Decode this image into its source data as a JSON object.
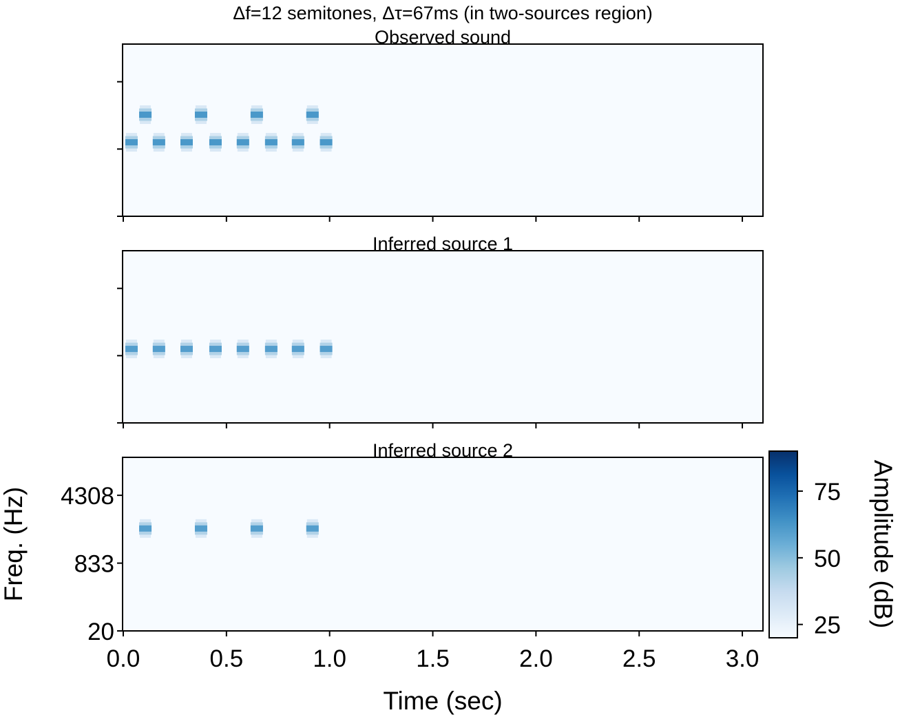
{
  "chart_data": {
    "type": "heatmap",
    "title": "Δf=12 semitones, Δτ=67ms (in two-sources region)",
    "xlabel": "Time (sec)",
    "ylabel": "Freq. (Hz)",
    "xlim": [
      0,
      3.1
    ],
    "ylim": [
      20,
      10000
    ],
    "yscale": "ERB",
    "xticks": [
      0.0,
      0.5,
      1.0,
      1.5,
      2.0,
      2.5,
      3.0
    ],
    "xtick_labels": [
      "0.0",
      "0.5",
      "1.0",
      "1.5",
      "2.0",
      "2.5",
      "3.0"
    ],
    "yticks": [
      20,
      833,
      4308
    ],
    "ytick_labels": [
      "20",
      "833",
      "4308"
    ],
    "background_amplitude_db": 20,
    "colorbar": {
      "label": "Amplitude (dB)",
      "range": [
        20,
        90
      ],
      "ticks": [
        25,
        50,
        75
      ],
      "tick_labels": [
        "25",
        "50",
        "75"
      ],
      "colormap": "Blues",
      "colors": [
        "#f7fbff",
        "#deebf7",
        "#c6dbef",
        "#9ecae1",
        "#6baed6",
        "#4292c6",
        "#2171b5",
        "#08519c",
        "#08306b"
      ]
    },
    "panels": [
      {
        "title": "Observed sound",
        "tones": [
          {
            "time": 0.04,
            "freq": 1000,
            "amplitude_db": 62
          },
          {
            "time": 0.107,
            "freq": 2000,
            "amplitude_db": 62
          },
          {
            "time": 0.173,
            "freq": 1000,
            "amplitude_db": 62
          },
          {
            "time": 0.307,
            "freq": 1000,
            "amplitude_db": 62
          },
          {
            "time": 0.377,
            "freq": 2000,
            "amplitude_db": 62
          },
          {
            "time": 0.447,
            "freq": 1000,
            "amplitude_db": 62
          },
          {
            "time": 0.58,
            "freq": 1000,
            "amplitude_db": 62
          },
          {
            "time": 0.647,
            "freq": 2000,
            "amplitude_db": 62
          },
          {
            "time": 0.717,
            "freq": 1000,
            "amplitude_db": 62
          },
          {
            "time": 0.847,
            "freq": 1000,
            "amplitude_db": 62
          },
          {
            "time": 0.917,
            "freq": 2000,
            "amplitude_db": 62
          },
          {
            "time": 0.983,
            "freq": 1000,
            "amplitude_db": 62
          }
        ]
      },
      {
        "title": "Inferred source 1",
        "tones": [
          {
            "time": 0.04,
            "freq": 1000,
            "amplitude_db": 60
          },
          {
            "time": 0.173,
            "freq": 1000,
            "amplitude_db": 60
          },
          {
            "time": 0.307,
            "freq": 1000,
            "amplitude_db": 60
          },
          {
            "time": 0.447,
            "freq": 1000,
            "amplitude_db": 60
          },
          {
            "time": 0.58,
            "freq": 1000,
            "amplitude_db": 60
          },
          {
            "time": 0.717,
            "freq": 1000,
            "amplitude_db": 60
          },
          {
            "time": 0.847,
            "freq": 1000,
            "amplitude_db": 60
          },
          {
            "time": 0.983,
            "freq": 1000,
            "amplitude_db": 60
          }
        ]
      },
      {
        "title": "Inferred source 2",
        "tones": [
          {
            "time": 0.107,
            "freq": 2000,
            "amplitude_db": 60
          },
          {
            "time": 0.377,
            "freq": 2000,
            "amplitude_db": 60
          },
          {
            "time": 0.647,
            "freq": 2000,
            "amplitude_db": 60
          },
          {
            "time": 0.917,
            "freq": 2000,
            "amplitude_db": 60
          }
        ]
      }
    ]
  }
}
